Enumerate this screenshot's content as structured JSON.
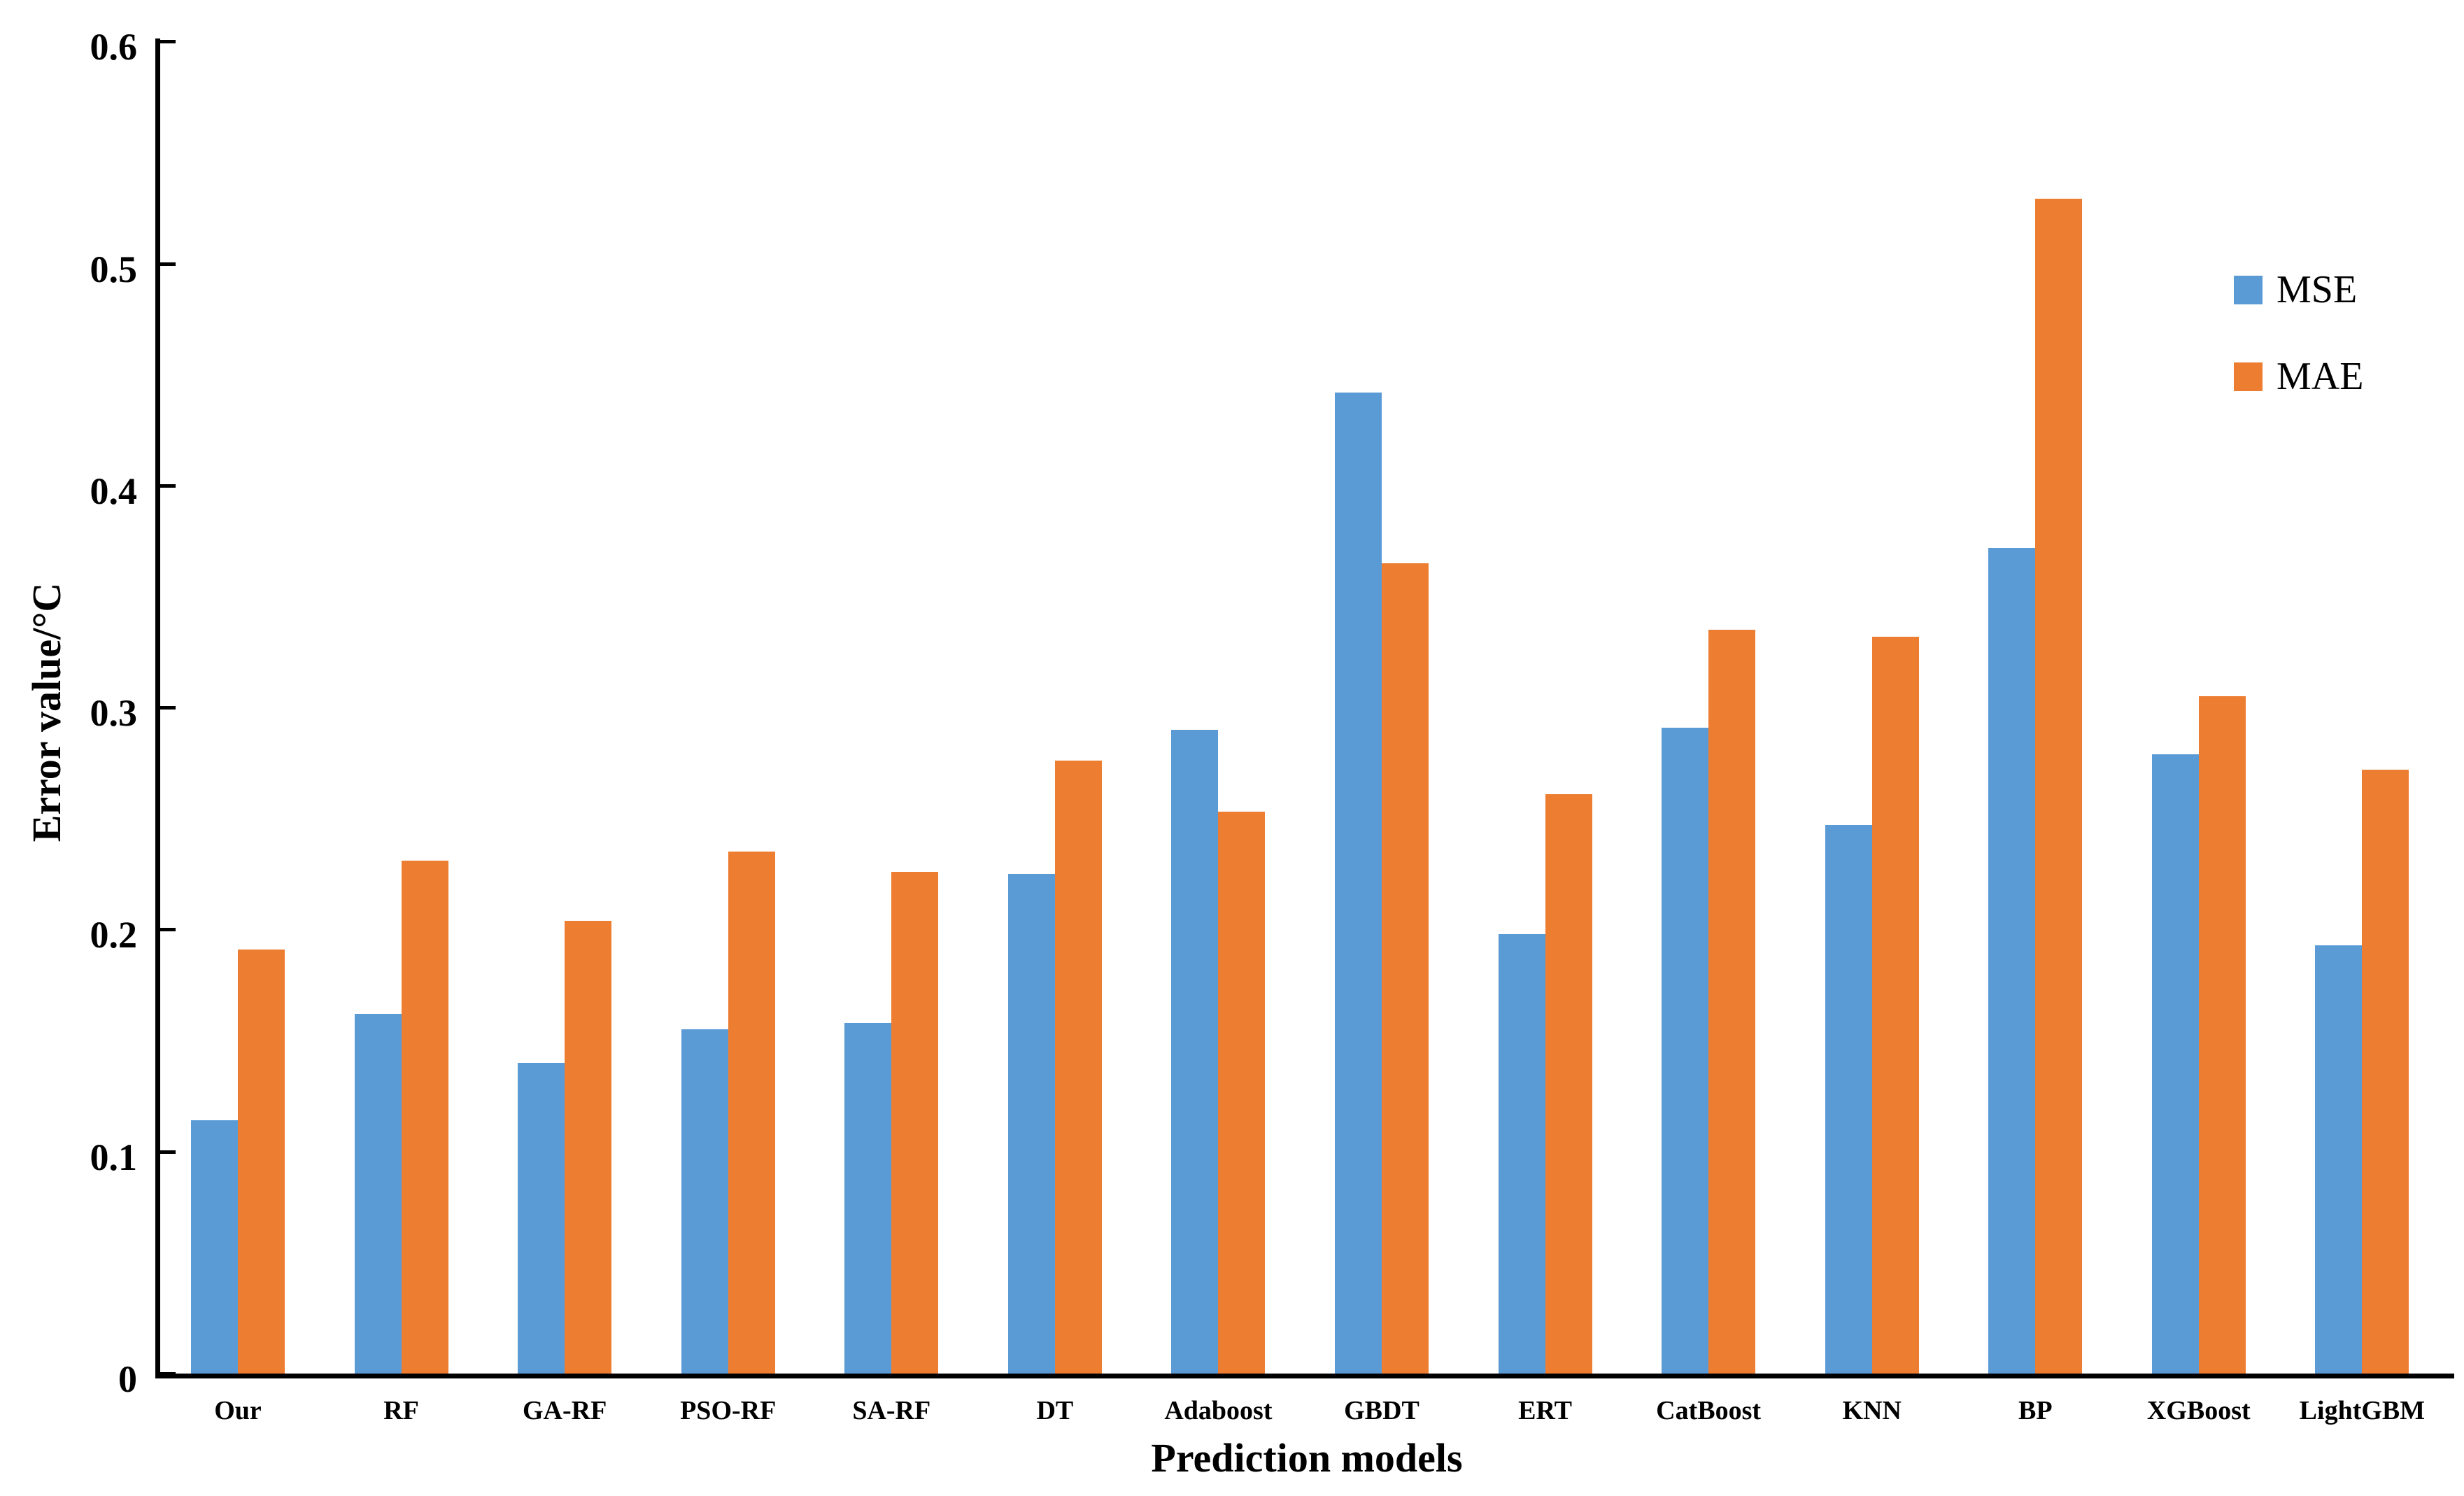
{
  "chart_data": {
    "type": "bar",
    "title": "",
    "categories": [
      "Our",
      "RF",
      "GA-RF",
      "PSO-RF",
      "SA-RF",
      "DT",
      "Adaboost",
      "GBDT",
      "ERT",
      "CatBoost",
      "KNN",
      "BP",
      "XGBoost",
      "LightGBM"
    ],
    "series": [
      {
        "name": "MSE",
        "color": "#5B9BD5",
        "values": [
          0.114,
          0.162,
          0.14,
          0.155,
          0.158,
          0.225,
          0.29,
          0.442,
          0.198,
          0.291,
          0.247,
          0.372,
          0.279,
          0.193
        ]
      },
      {
        "name": "MAE",
        "color": "#ED7D31",
        "values": [
          0.191,
          0.231,
          0.204,
          0.235,
          0.226,
          0.276,
          0.253,
          0.365,
          0.261,
          0.335,
          0.332,
          0.529,
          0.305,
          0.272
        ]
      }
    ],
    "xlabel": "Prediction models",
    "ylabel": "Error value/°C",
    "ylim": [
      0,
      0.6
    ],
    "yticks": [
      "0",
      "0.1",
      "0.2",
      "0.3",
      "0.4",
      "0.5",
      "0.6"
    ],
    "grid": false,
    "legend_position": "upper right",
    "axis_color": "#000000",
    "background_color": "#FFFFFF"
  }
}
